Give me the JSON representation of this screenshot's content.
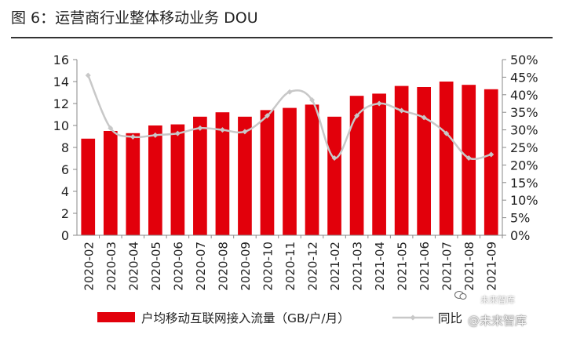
{
  "title": "图  6：运营商行业整体移动业务 DOU",
  "watermark": {
    "top": "未来智库",
    "bottom": "@未来智库"
  },
  "colors": {
    "bar": "#e2000b",
    "line": "#c8c8c8",
    "axis": "#888888",
    "text": "#222222"
  },
  "chart_data": {
    "type": "bar",
    "categories": [
      "2020-02",
      "2020-03",
      "2020-04",
      "2020-05",
      "2020-06",
      "2020-07",
      "2020-08",
      "2020-09",
      "2020-10",
      "2020-11",
      "2020-12",
      "2021-02",
      "2021-03",
      "2021-04",
      "2021-05",
      "2021-06",
      "2021-07",
      "2021-08",
      "2021-09"
    ],
    "series": [
      {
        "name": "户均移动互联网接入流量（GB/户/月）",
        "type": "bar",
        "axis": "left",
        "values": [
          8.8,
          9.5,
          9.3,
          10.0,
          10.1,
          10.8,
          11.2,
          10.8,
          11.4,
          11.6,
          11.9,
          10.8,
          12.7,
          12.9,
          13.6,
          13.5,
          14.0,
          13.7,
          13.3
        ]
      },
      {
        "name": "同比",
        "type": "line",
        "axis": "right",
        "values": [
          0.455,
          0.305,
          0.28,
          0.285,
          0.29,
          0.305,
          0.3,
          0.295,
          0.34,
          0.408,
          0.385,
          0.22,
          0.34,
          0.375,
          0.355,
          0.335,
          0.29,
          0.22,
          0.23
        ]
      }
    ],
    "y_left": {
      "ylim": [
        0,
        16
      ],
      "ticks": [
        "0",
        "2",
        "4",
        "6",
        "8",
        "10",
        "12",
        "14",
        "16"
      ]
    },
    "y_right": {
      "ylim": [
        0,
        0.5
      ],
      "ticks": [
        "0%",
        "5%",
        "10%",
        "15%",
        "20%",
        "25%",
        "30%",
        "35%",
        "40%",
        "45%",
        "50%"
      ]
    },
    "grid": false,
    "legend": "bottom"
  }
}
